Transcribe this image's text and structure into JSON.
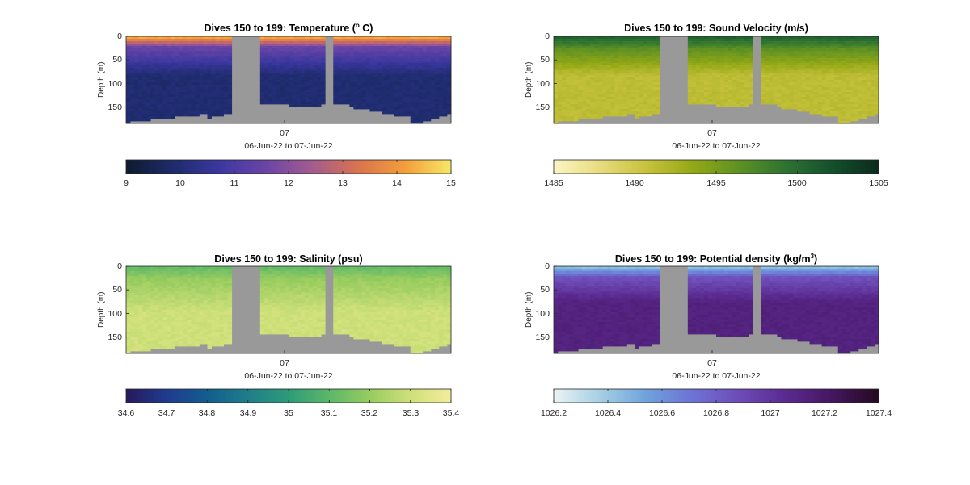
{
  "chart_data": [
    {
      "type": "heatmap",
      "title_main": "Dives 150 to 199: Temperature (",
      "title_sup": "o",
      "title_tail": " C)",
      "ylabel": "Depth (m)",
      "y_ticks": [
        "0",
        "50",
        "100",
        "150"
      ],
      "y_tick_values": [
        0,
        50,
        100,
        150
      ],
      "ylim": [
        0,
        185
      ],
      "y_reversed": true,
      "x_tick": "07",
      "xlabel": "06-Jun-22 to 07-Jun-22",
      "colorbar": {
        "ticks": [
          "9",
          "10",
          "11",
          "12",
          "13",
          "14",
          "15"
        ],
        "values": [
          9,
          10,
          11,
          12,
          13,
          14,
          15
        ],
        "range": [
          9,
          15
        ],
        "colors": [
          "#0d1b2e",
          "#1d2b6b",
          "#3b37a0",
          "#6a45a6",
          "#a35b8f",
          "#d9744f",
          "#f49d3b",
          "#f5e966"
        ]
      },
      "profile": {
        "surface": 14.2,
        "mixed": 11.6,
        "mixed_depth": 20,
        "deep": 9.95,
        "thermocline": 60
      }
    },
    {
      "type": "heatmap",
      "title_main": "Dives 150 to 199: Sound Velocity (m/s)",
      "title_sup": "",
      "title_tail": "",
      "ylabel": "Depth (m)",
      "y_ticks": [
        "0",
        "50",
        "100",
        "150"
      ],
      "y_tick_values": [
        0,
        50,
        100,
        150
      ],
      "ylim": [
        0,
        185
      ],
      "y_reversed": true,
      "x_tick": "07",
      "xlabel": "06-Jun-22 to 07-Jun-22",
      "colorbar": {
        "ticks": [
          "1485",
          "1490",
          "1495",
          "1500",
          "1505"
        ],
        "values": [
          1485,
          1490,
          1495,
          1500,
          1505
        ],
        "range": [
          1485,
          1505
        ],
        "colors": [
          "#fbf6c4",
          "#e8db7e",
          "#c7c23c",
          "#94a816",
          "#5d9124",
          "#2e7232",
          "#14502c",
          "#0b2a1c"
        ]
      },
      "profile": {
        "surface": 1500.5,
        "mixed": 1496.5,
        "mixed_depth": 25,
        "deep": 1491.3,
        "thermocline": 55
      }
    },
    {
      "type": "heatmap",
      "title_main": "Dives 150 to 199: Salinity (psu)",
      "title_sup": "",
      "title_tail": "",
      "ylabel": "Depth (m)",
      "y_ticks": [
        "0",
        "50",
        "100",
        "150"
      ],
      "y_tick_values": [
        0,
        50,
        100,
        150
      ],
      "ylim": [
        0,
        185
      ],
      "y_reversed": true,
      "x_tick": "07",
      "xlabel": "06-Jun-22 to 07-Jun-22",
      "colorbar": {
        "ticks": [
          "34.6",
          "34.7",
          "34.8",
          "34.9",
          "35",
          "35.1",
          "35.2",
          "35.3",
          "35.4"
        ],
        "values": [
          34.6,
          34.7,
          34.8,
          34.9,
          35.0,
          35.1,
          35.2,
          35.3,
          35.4
        ],
        "range": [
          34.6,
          35.4
        ],
        "colors": [
          "#28185c",
          "#1f3b8f",
          "#135d8f",
          "#1f7d8a",
          "#2e9b78",
          "#5bb769",
          "#98cc5f",
          "#cfe07a",
          "#f5ec9c"
        ]
      },
      "profile": {
        "surface": 35.12,
        "mixed": 35.2,
        "mixed_depth": 25,
        "deep": 35.3,
        "thermocline": 70
      }
    },
    {
      "type": "heatmap",
      "title_main": "Dives 150 to 199: Potential density (kg/m",
      "title_sup": "3",
      "title_tail": ")",
      "ylabel": "Depth (m)",
      "y_ticks": [
        "0",
        "50",
        "100",
        "150"
      ],
      "y_tick_values": [
        0,
        50,
        100,
        150
      ],
      "ylim": [
        0,
        185
      ],
      "y_reversed": true,
      "x_tick": "07",
      "xlabel": "06-Jun-22 to 07-Jun-22",
      "colorbar": {
        "ticks": [
          "1026.2",
          "1026.4",
          "1026.6",
          "1026.8",
          "1027",
          "1027.2",
          "1027.4"
        ],
        "values": [
          1026.2,
          1026.4,
          1026.6,
          1026.8,
          1027.0,
          1027.2,
          1027.4
        ],
        "range": [
          1026.2,
          1027.4
        ],
        "colors": [
          "#eaf4f4",
          "#a6cfe4",
          "#6fa2dc",
          "#6e72d4",
          "#6d4cb7",
          "#5a2a8f",
          "#45165f",
          "#240a1f"
        ]
      },
      "profile": {
        "surface": 1026.45,
        "mixed": 1026.85,
        "mixed_depth": 20,
        "deep": 1027.12,
        "thermocline": 55
      }
    }
  ]
}
